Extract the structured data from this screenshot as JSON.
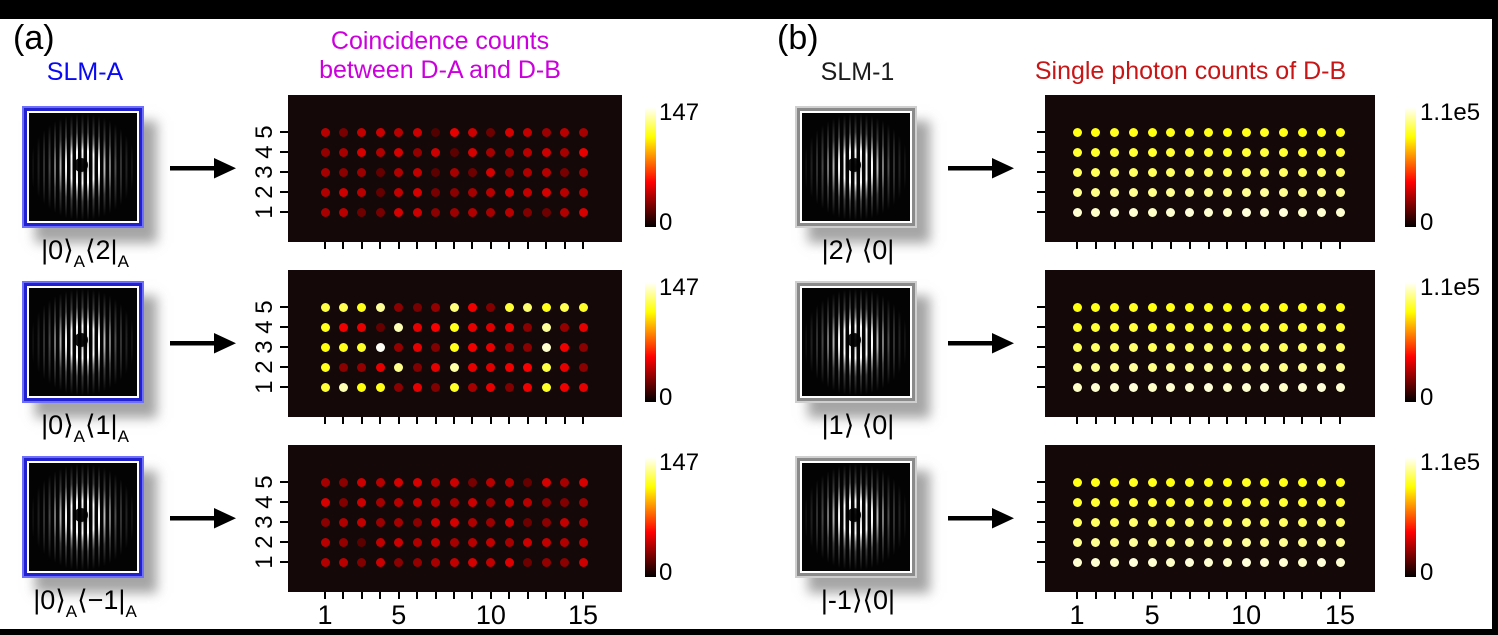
{
  "figure": {
    "panel_a": {
      "label": "(a)",
      "slm_title": "SLM-A",
      "slm_title_color": "#0909f2",
      "plot_title_lines": [
        "Coincidence counts",
        "between D-A and D-B"
      ],
      "plot_title_color": "#cc00dd",
      "colorbar_max_label": "147",
      "colorbar_min_label": "0",
      "x_tick_labels": [
        "1",
        "5",
        "10",
        "15"
      ],
      "y_tick_labels": [
        "1",
        "2",
        "3",
        "4",
        "5"
      ],
      "rows": [
        {
          "ket": "|0⟩",
          "ket_sub": "A",
          "bra": "⟨2|",
          "bra_sub": "A"
        },
        {
          "ket": "|0⟩",
          "ket_sub": "A",
          "bra": "⟨1|",
          "bra_sub": "A"
        },
        {
          "ket": "|0⟩",
          "ket_sub": "A",
          "bra": "⟨−1|",
          "bra_sub": "A"
        }
      ]
    },
    "panel_b": {
      "label": "(b)",
      "slm_title": "SLM-1",
      "slm_title_color": "#1c1c1c",
      "plot_title_lines": [
        "Single photon counts of D-B"
      ],
      "plot_title_color": "#c81616",
      "colorbar_max_label": "1.1e5",
      "colorbar_min_label": "0",
      "x_tick_labels": [
        "1",
        "5",
        "10",
        "15"
      ],
      "y_tick_labels": [],
      "rows": [
        {
          "ket": "|2⟩",
          "ket_sub": "",
          "bra": " ⟨0|",
          "bra_sub": ""
        },
        {
          "ket": "|1⟩",
          "ket_sub": "",
          "bra": " ⟨0|",
          "bra_sub": ""
        },
        {
          "ket": "|-1⟩",
          "ket_sub": "",
          "bra": "⟨0|",
          "bra_sub": ""
        }
      ]
    }
  },
  "chart_data": [
    {
      "type": "heatmap",
      "panel": "a",
      "slm_state": "|0⟩A⟨2|A",
      "title": "Coincidence counts between D-A and D-B",
      "x_range": [
        1,
        15
      ],
      "y_range": [
        1,
        5
      ],
      "x_tick_labels": [
        "1",
        "5",
        "10",
        "15"
      ],
      "y_tick_labels": [
        "1",
        "2",
        "3",
        "4",
        "5"
      ],
      "colorbar": {
        "min": 0,
        "max": 147,
        "min_label": "0",
        "max_label": "147",
        "colormap": "hot"
      },
      "values_top_to_bottom": [
        [
          40,
          26,
          42,
          44,
          40,
          44,
          18,
          50,
          44,
          24,
          46,
          42,
          34,
          40,
          36
        ],
        [
          32,
          36,
          46,
          38,
          46,
          32,
          44,
          20,
          46,
          36,
          34,
          40,
          44,
          36,
          50
        ],
        [
          36,
          30,
          34,
          22,
          38,
          42,
          20,
          36,
          24,
          46,
          30,
          38,
          40,
          26,
          34
        ],
        [
          38,
          44,
          40,
          22,
          42,
          46,
          26,
          30,
          36,
          40,
          44,
          42,
          46,
          40,
          38
        ],
        [
          36,
          40,
          24,
          26,
          46,
          44,
          30,
          34,
          38,
          36,
          40,
          28,
          24,
          38,
          46
        ]
      ]
    },
    {
      "type": "heatmap",
      "panel": "a",
      "slm_state": "|0⟩A⟨1|A",
      "title": "Coincidence counts between D-A and D-B",
      "x_range": [
        1,
        15
      ],
      "y_range": [
        1,
        5
      ],
      "x_tick_labels": [
        "1",
        "5",
        "10",
        "15"
      ],
      "y_tick_labels": [
        "1",
        "2",
        "3",
        "4",
        "5"
      ],
      "colorbar": {
        "min": 0,
        "max": 147,
        "min_label": "0",
        "max_label": "147",
        "colormap": "hot"
      },
      "values_top_to_bottom": [
        [
          120,
          122,
          114,
          132,
          30,
          26,
          32,
          128,
          52,
          28,
          118,
          126,
          114,
          122,
          116
        ],
        [
          114,
          52,
          50,
          22,
          136,
          50,
          54,
          114,
          50,
          48,
          50,
          30,
          132,
          32,
          50
        ],
        [
          112,
          114,
          116,
          146,
          32,
          50,
          28,
          114,
          52,
          50,
          36,
          30,
          140,
          52,
          30
        ],
        [
          114,
          30,
          32,
          50,
          130,
          28,
          50,
          134,
          50,
          48,
          52,
          54,
          120,
          50,
          30
        ],
        [
          118,
          136,
          112,
          114,
          30,
          50,
          28,
          116,
          36,
          50,
          28,
          52,
          116,
          52,
          50
        ]
      ]
    },
    {
      "type": "heatmap",
      "panel": "a",
      "slm_state": "|0⟩A⟨−1|A",
      "title": "Coincidence counts between D-A and D-B",
      "x_range": [
        1,
        15
      ],
      "y_range": [
        1,
        5
      ],
      "x_tick_labels": [
        "1",
        "5",
        "10",
        "15"
      ],
      "y_tick_labels": [
        "1",
        "2",
        "3",
        "4",
        "5"
      ],
      "colorbar": {
        "min": 0,
        "max": 147,
        "min_label": "0",
        "max_label": "147",
        "colormap": "hot"
      },
      "values_top_to_bottom": [
        [
          36,
          30,
          44,
          40,
          46,
          46,
          38,
          44,
          26,
          40,
          38,
          22,
          46,
          36,
          46
        ],
        [
          46,
          28,
          44,
          36,
          40,
          42,
          38,
          36,
          44,
          34,
          42,
          40,
          30,
          28,
          34
        ],
        [
          30,
          38,
          42,
          34,
          36,
          30,
          44,
          46,
          38,
          34,
          44,
          24,
          30,
          42,
          36
        ],
        [
          40,
          32,
          20,
          42,
          44,
          38,
          42,
          36,
          40,
          42,
          36,
          44,
          42,
          38,
          40
        ],
        [
          38,
          40,
          28,
          44,
          30,
          32,
          36,
          42,
          46,
          42,
          48,
          24,
          32,
          30,
          44
        ]
      ]
    },
    {
      "type": "heatmap",
      "panel": "b",
      "slm_state": "|2⟩⟨0|",
      "title": "Single photon counts of D-B",
      "x_range": [
        1,
        15
      ],
      "y_range": [
        1,
        5
      ],
      "x_tick_labels": [
        "1",
        "5",
        "10",
        "15"
      ],
      "y_tick_labels": [],
      "colorbar": {
        "min": 0,
        "max": 110000,
        "min_label": "0",
        "max_label": "1.1e5",
        "colormap": "hot"
      },
      "values_top_to_bottom": [
        [
          85000,
          84000,
          86000,
          85000,
          84000,
          85000,
          86000,
          85000,
          84000,
          85000,
          86000,
          85000,
          84000,
          85000,
          85000
        ],
        [
          88000,
          87000,
          89000,
          88000,
          87000,
          88000,
          89000,
          88000,
          87000,
          88000,
          89000,
          88000,
          87000,
          88000,
          88000
        ],
        [
          93000,
          92000,
          94000,
          93000,
          92000,
          93000,
          94000,
          93000,
          92000,
          93000,
          94000,
          93000,
          92000,
          93000,
          93000
        ],
        [
          98000,
          97000,
          99000,
          98000,
          97000,
          98000,
          99000,
          98000,
          97000,
          98000,
          99000,
          98000,
          97000,
          98000,
          98000
        ],
        [
          105000,
          104000,
          106000,
          105000,
          104000,
          105000,
          106000,
          105000,
          104000,
          106000,
          105000,
          106000,
          104000,
          105000,
          105000
        ]
      ]
    },
    {
      "type": "heatmap",
      "panel": "b",
      "slm_state": "|1⟩⟨0|",
      "title": "Single photon counts of D-B",
      "x_range": [
        1,
        15
      ],
      "y_range": [
        1,
        5
      ],
      "x_tick_labels": [
        "1",
        "5",
        "10",
        "15"
      ],
      "y_tick_labels": [],
      "colorbar": {
        "min": 0,
        "max": 110000,
        "min_label": "0",
        "max_label": "1.1e5",
        "colormap": "hot"
      },
      "values_top_to_bottom": [
        [
          84000,
          85000,
          85000,
          86000,
          84000,
          85000,
          85000,
          86000,
          84000,
          85000,
          86000,
          84000,
          85000,
          86000,
          85000
        ],
        [
          87000,
          88000,
          88000,
          89000,
          87000,
          88000,
          88000,
          89000,
          87000,
          88000,
          89000,
          87000,
          88000,
          89000,
          88000
        ],
        [
          92000,
          93000,
          93000,
          94000,
          92000,
          93000,
          93000,
          94000,
          92000,
          93000,
          94000,
          92000,
          93000,
          94000,
          93000
        ],
        [
          97000,
          98000,
          98000,
          99000,
          97000,
          98000,
          98000,
          99000,
          97000,
          98000,
          99000,
          97000,
          98000,
          99000,
          98000
        ],
        [
          104000,
          105000,
          105000,
          106000,
          104000,
          105000,
          105000,
          106000,
          104000,
          105000,
          106000,
          104000,
          105000,
          106000,
          105000
        ]
      ]
    },
    {
      "type": "heatmap",
      "panel": "b",
      "slm_state": "|-1⟩⟨0|",
      "title": "Single photon counts of D-B",
      "x_range": [
        1,
        15
      ],
      "y_range": [
        1,
        5
      ],
      "x_tick_labels": [
        "1",
        "5",
        "10",
        "15"
      ],
      "y_tick_labels": [],
      "colorbar": {
        "min": 0,
        "max": 110000,
        "min_label": "0",
        "max_label": "1.1e5",
        "colormap": "hot"
      },
      "values_top_to_bottom": [
        [
          85000,
          85000,
          84000,
          86000,
          85000,
          84000,
          86000,
          85000,
          84000,
          86000,
          85000,
          85000,
          84000,
          86000,
          85000
        ],
        [
          88000,
          88000,
          87000,
          89000,
          88000,
          87000,
          89000,
          88000,
          87000,
          89000,
          88000,
          88000,
          87000,
          89000,
          88000
        ],
        [
          93000,
          93000,
          92000,
          94000,
          93000,
          92000,
          94000,
          93000,
          92000,
          94000,
          93000,
          93000,
          92000,
          94000,
          93000
        ],
        [
          98000,
          98000,
          97000,
          99000,
          98000,
          97000,
          99000,
          98000,
          97000,
          99000,
          98000,
          98000,
          97000,
          99000,
          98000
        ],
        [
          105000,
          105000,
          104000,
          106000,
          105000,
          104000,
          106000,
          105000,
          104000,
          106000,
          105000,
          105000,
          104000,
          106000,
          105000
        ]
      ]
    }
  ]
}
